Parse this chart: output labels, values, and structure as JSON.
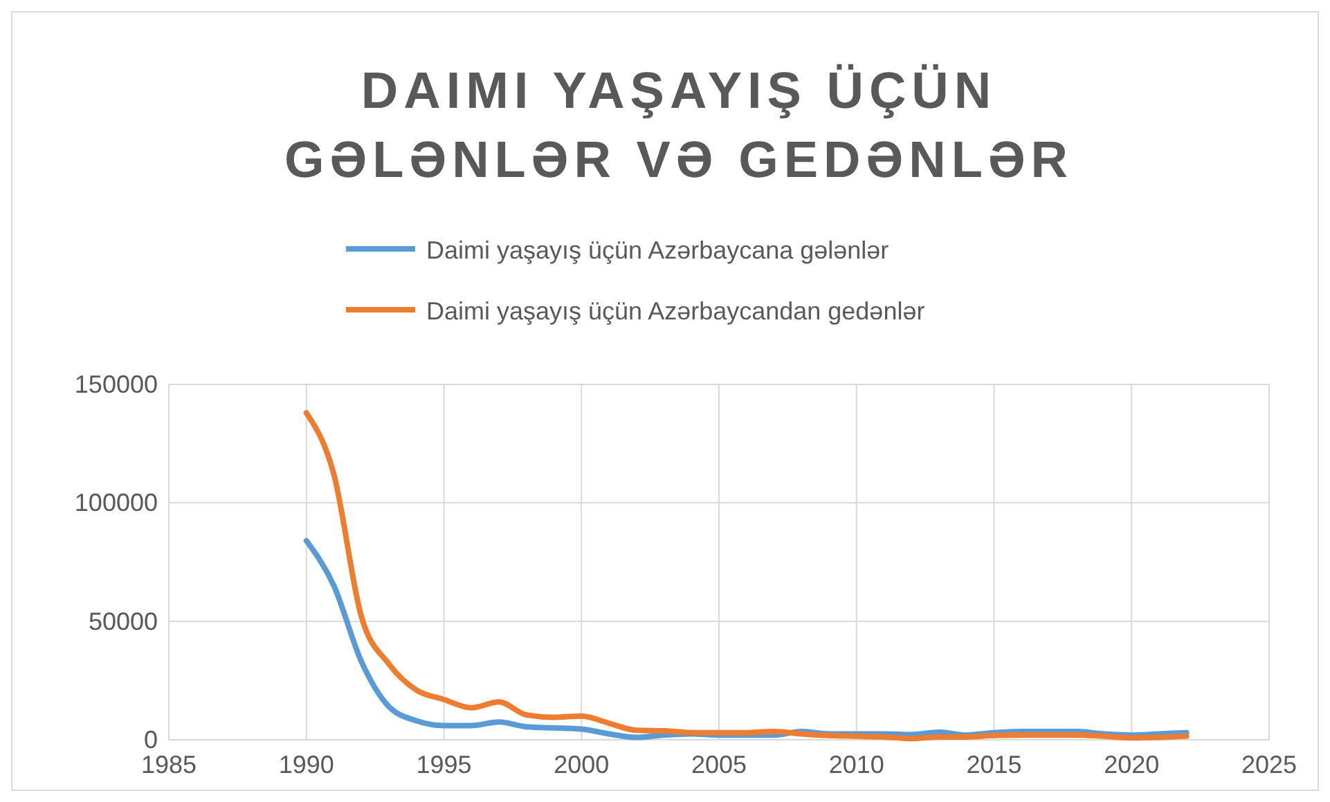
{
  "chart_data": {
    "type": "line",
    "title": "DAIMI YAŞAYIŞ ÜÇÜN GƏLƏNLƏR VƏ GEDƏNLƏR",
    "x": [
      1990,
      1991,
      1992,
      1993,
      1994,
      1995,
      1996,
      1997,
      1998,
      1999,
      2000,
      2001,
      2002,
      2003,
      2004,
      2005,
      2006,
      2007,
      2008,
      2009,
      2010,
      2011,
      2012,
      2013,
      2014,
      2015,
      2016,
      2017,
      2018,
      2019,
      2020,
      2021,
      2022
    ],
    "series": [
      {
        "name": "Daimi yaşayış üçün Azərbaycana gələnlər",
        "color": "#5b9bd5",
        "values": [
          84000,
          65000,
          33000,
          14000,
          8000,
          6000,
          6000,
          7500,
          5500,
          5000,
          4500,
          2500,
          1000,
          2000,
          2500,
          2000,
          2000,
          2000,
          3500,
          2500,
          2500,
          2500,
          2200,
          3200,
          2000,
          3000,
          3500,
          3500,
          3500,
          2500,
          2000,
          2500,
          3000
        ]
      },
      {
        "name": "Daimi yaşayış üçün Azərbaycandan gedənlər",
        "color": "#ed7d31",
        "values": [
          138000,
          112000,
          52000,
          32000,
          21000,
          17000,
          13500,
          16000,
          10500,
          9500,
          10000,
          7000,
          4000,
          3800,
          3000,
          3000,
          3000,
          3500,
          2500,
          1800,
          1500,
          1200,
          500,
          1200,
          1200,
          1800,
          2000,
          2000,
          2000,
          1500,
          800,
          1000,
          1500
        ]
      }
    ],
    "xlim": [
      1985,
      2025
    ],
    "xticks": [
      1985,
      1990,
      1995,
      2000,
      2005,
      2010,
      2015,
      2020,
      2025
    ],
    "ylim": [
      0,
      150000
    ],
    "yticks": [
      0,
      50000,
      100000,
      150000
    ],
    "grid": true,
    "legend": "top",
    "marker": "none",
    "line_style": "solid"
  }
}
